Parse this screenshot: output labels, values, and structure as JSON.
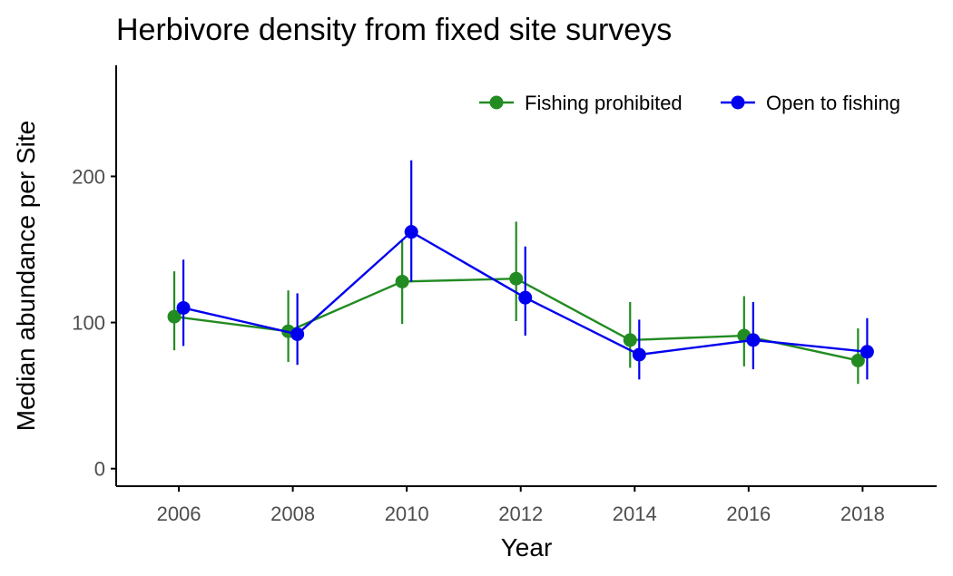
{
  "chart_data": {
    "type": "line",
    "title": "Herbivore density from fixed site surveys",
    "xlabel": "Year",
    "ylabel": "Median abundance per Site",
    "xlim": [
      2004.9,
      2019.3
    ],
    "ylim": [
      -12,
      276
    ],
    "x_ticks": [
      2006,
      2008,
      2010,
      2012,
      2014,
      2016,
      2018
    ],
    "y_ticks": [
      0,
      100,
      200
    ],
    "grid": false,
    "legend_position": "top-right",
    "colors": {
      "fishing_prohibited": "#228B22",
      "open_to_fishing": "#0000EE",
      "axis": "#000000",
      "tick_label": "#4d4d4d"
    },
    "series": [
      {
        "name": "Fishing prohibited",
        "color": "#228B22",
        "x": [
          2006,
          2008,
          2010,
          2012,
          2014,
          2016,
          2018
        ],
        "values": [
          104,
          94,
          128,
          130,
          88,
          91,
          74
        ],
        "lower": [
          81,
          73,
          99,
          101,
          69,
          70,
          58
        ],
        "upper": [
          135,
          122,
          157,
          169,
          114,
          118,
          96
        ]
      },
      {
        "name": "Open to fishing",
        "color": "#0000EE",
        "x": [
          2006,
          2008,
          2010,
          2012,
          2014,
          2016,
          2018
        ],
        "values": [
          110,
          92,
          162,
          117,
          78,
          88,
          80
        ],
        "lower": [
          84,
          71,
          128,
          91,
          61,
          68,
          61
        ],
        "upper": [
          143,
          120,
          211,
          152,
          102,
          114,
          103
        ]
      }
    ]
  }
}
